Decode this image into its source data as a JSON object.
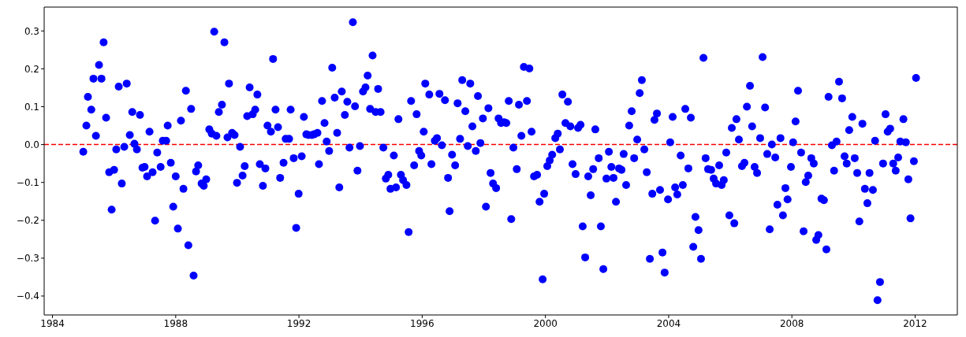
{
  "chart_data": {
    "type": "scatter",
    "marker": "circle",
    "x": [
      1985.0,
      1985.1,
      1985.15,
      1985.26,
      1985.33,
      1985.41,
      1985.51,
      1985.59,
      1985.66,
      1985.74,
      1985.84,
      1985.92,
      1986.0,
      1986.07,
      1986.15,
      1986.25,
      1986.33,
      1986.41,
      1986.51,
      1986.59,
      1986.66,
      1986.74,
      1986.84,
      1986.92,
      1986.99,
      1987.07,
      1987.15,
      1987.25,
      1987.33,
      1987.4,
      1987.51,
      1987.58,
      1987.69,
      1987.74,
      1987.84,
      1987.92,
      1988.0,
      1988.07,
      1988.17,
      1988.25,
      1988.33,
      1988.41,
      1988.5,
      1988.58,
      1988.66,
      1988.73,
      1988.84,
      1988.91,
      1988.99,
      1989.09,
      1989.17,
      1989.25,
      1989.32,
      1989.4,
      1989.5,
      1989.58,
      1989.68,
      1989.73,
      1989.83,
      1989.91,
      1989.99,
      1990.09,
      1990.17,
      1990.24,
      1990.32,
      1990.4,
      1990.5,
      1990.58,
      1990.65,
      1990.73,
      1990.83,
      1990.91,
      1990.98,
      1991.09,
      1991.16,
      1991.24,
      1991.32,
      1991.39,
      1991.5,
      1991.57,
      1991.68,
      1991.73,
      1991.83,
      1991.91,
      1991.99,
      1992.09,
      1992.16,
      1992.24,
      1992.31,
      1992.42,
      1992.49,
      1992.6,
      1992.65,
      1992.75,
      1992.83,
      1992.9,
      1992.98,
      1993.08,
      1993.16,
      1993.24,
      1993.31,
      1993.39,
      1993.49,
      1993.57,
      1993.64,
      1993.75,
      1993.82,
      1993.9,
      1993.98,
      1994.08,
      1994.16,
      1994.23,
      1994.31,
      1994.39,
      1994.49,
      1994.57,
      1994.65,
      1994.74,
      1994.82,
      1994.9,
      1994.97,
      1995.08,
      1995.15,
      1995.23,
      1995.31,
      1995.38,
      1995.49,
      1995.56,
      1995.64,
      1995.74,
      1995.82,
      1995.9,
      1995.97,
      1996.05,
      1996.1,
      1996.23,
      1996.3,
      1996.41,
      1996.48,
      1996.56,
      1996.64,
      1996.74,
      1996.84,
      1996.89,
      1996.97,
      1997.07,
      1997.15,
      1997.23,
      1997.3,
      1997.4,
      1997.48,
      1997.56,
      1997.63,
      1997.74,
      1997.81,
      1997.89,
      1997.97,
      1998.07,
      1998.15,
      1998.22,
      1998.3,
      1998.4,
      1998.48,
      1998.56,
      1998.66,
      1998.73,
      1998.81,
      1998.89,
      1998.96,
      1999.07,
      1999.14,
      1999.22,
      1999.3,
      1999.4,
      1999.48,
      1999.55,
      1999.63,
      1999.73,
      1999.81,
      1999.91,
      1999.96,
      2000.06,
      2000.14,
      2000.22,
      2000.32,
      2000.4,
      2000.47,
      2000.55,
      2000.65,
      2000.73,
      2000.81,
      2000.88,
      2000.98,
      2001.06,
      2001.14,
      2001.21,
      2001.29,
      2001.39,
      2001.47,
      2001.55,
      2001.62,
      2001.73,
      2001.8,
      2001.88,
      2001.98,
      2002.06,
      2002.14,
      2002.21,
      2002.29,
      2002.39,
      2002.47,
      2002.54,
      2002.62,
      2002.72,
      2002.8,
      2002.88,
      2002.98,
      2003.06,
      2003.13,
      2003.21,
      2003.29,
      2003.39,
      2003.47,
      2003.54,
      2003.62,
      2003.72,
      2003.8,
      2003.87,
      2003.98,
      2004.05,
      2004.13,
      2004.21,
      2004.28,
      2004.39,
      2004.46,
      2004.54,
      2004.64,
      2004.72,
      2004.8,
      2004.87,
      2004.97,
      2005.05,
      2005.13,
      2005.2,
      2005.28,
      2005.38,
      2005.46,
      2005.54,
      2005.64,
      2005.72,
      2005.79,
      2005.87,
      2005.97,
      2006.05,
      2006.13,
      2006.2,
      2006.28,
      2006.38,
      2006.46,
      2006.54,
      2006.64,
      2006.71,
      2006.79,
      2006.87,
      2006.97,
      2007.05,
      2007.13,
      2007.2,
      2007.28,
      2007.35,
      2007.46,
      2007.53,
      2007.63,
      2007.71,
      2007.79,
      2007.86,
      2007.97,
      2008.04,
      2008.12,
      2008.2,
      2008.3,
      2008.38,
      2008.45,
      2008.53,
      2008.63,
      2008.71,
      2008.79,
      2008.86,
      2008.96,
      2009.04,
      2009.12,
      2009.19,
      2009.3,
      2009.37,
      2009.45,
      2009.53,
      2009.63,
      2009.71,
      2009.78,
      2009.86,
      2009.96,
      2010.04,
      2010.12,
      2010.19,
      2010.29,
      2010.37,
      2010.45,
      2010.52,
      2010.63,
      2010.7,
      2010.78,
      2010.86,
      2010.96,
      2011.04,
      2011.11,
      2011.19,
      2011.29,
      2011.37,
      2011.45,
      2011.52,
      2011.62,
      2011.7,
      2011.78,
      2011.85,
      2011.96,
      2012.03
    ],
    "series": [
      {
        "color": "#0000ff",
        "values": [
          -0.019,
          0.05,
          0.126,
          0.092,
          0.174,
          0.023,
          0.21,
          0.174,
          0.27,
          0.071,
          -0.073,
          -0.172,
          -0.067,
          -0.013,
          0.153,
          -0.103,
          -0.006,
          0.161,
          0.025,
          0.086,
          0.002,
          -0.013,
          0.078,
          -0.061,
          -0.059,
          -0.084,
          0.034,
          -0.073,
          -0.201,
          -0.021,
          -0.059,
          0.01,
          0.01,
          0.05,
          -0.048,
          -0.164,
          -0.084,
          -0.222,
          0.063,
          -0.117,
          0.142,
          -0.266,
          0.094,
          -0.346,
          -0.071,
          -0.055,
          -0.103,
          -0.109,
          -0.092,
          0.04,
          0.029,
          0.298,
          0.023,
          0.086,
          0.105,
          0.27,
          0.019,
          0.161,
          0.031,
          0.025,
          -0.101,
          -0.006,
          -0.082,
          -0.057,
          0.075,
          0.151,
          0.08,
          0.092,
          0.132,
          -0.052,
          -0.109,
          -0.063,
          0.05,
          0.034,
          0.226,
          0.092,
          0.046,
          -0.088,
          -0.048,
          0.015,
          0.015,
          0.092,
          -0.036,
          -0.22,
          -0.13,
          -0.031,
          0.073,
          0.027,
          0.025,
          0.025,
          0.027,
          0.031,
          -0.052,
          0.115,
          0.057,
          0.008,
          -0.017,
          0.203,
          0.124,
          0.031,
          -0.113,
          0.14,
          0.078,
          0.113,
          -0.008,
          0.323,
          0.101,
          -0.069,
          -0.004,
          0.14,
          0.151,
          0.182,
          0.094,
          0.235,
          0.086,
          0.147,
          0.086,
          -0.008,
          -0.09,
          -0.08,
          -0.117,
          -0.029,
          -0.113,
          0.067,
          -0.08,
          -0.094,
          -0.107,
          -0.231,
          0.115,
          -0.055,
          0.08,
          -0.017,
          -0.029,
          0.034,
          0.161,
          0.132,
          -0.052,
          0.01,
          0.017,
          0.134,
          -0.002,
          0.117,
          -0.088,
          -0.176,
          -0.027,
          -0.055,
          0.109,
          0.015,
          0.17,
          0.088,
          -0.004,
          0.161,
          0.048,
          -0.017,
          0.128,
          0.004,
          0.069,
          -0.164,
          0.096,
          -0.075,
          -0.103,
          -0.115,
          0.069,
          0.057,
          0.059,
          0.057,
          0.115,
          -0.197,
          -0.008,
          -0.065,
          0.105,
          0.023,
          0.205,
          0.115,
          0.201,
          0.034,
          -0.084,
          -0.08,
          -0.151,
          -0.356,
          -0.13,
          -0.057,
          -0.042,
          -0.027,
          0.017,
          0.029,
          -0.013,
          0.132,
          0.057,
          0.113,
          0.048,
          -0.052,
          -0.078,
          0.044,
          0.052,
          -0.216,
          -0.298,
          -0.084,
          -0.134,
          -0.065,
          0.04,
          -0.036,
          -0.216,
          -0.329,
          -0.09,
          -0.019,
          -0.059,
          -0.088,
          -0.151,
          -0.063,
          -0.067,
          -0.025,
          -0.107,
          0.05,
          0.088,
          -0.036,
          0.013,
          0.136,
          0.17,
          -0.013,
          -0.073,
          -0.302,
          -0.13,
          0.065,
          0.082,
          -0.12,
          -0.285,
          -0.338,
          -0.145,
          0.006,
          0.073,
          -0.113,
          -0.132,
          -0.029,
          -0.107,
          0.094,
          -0.063,
          0.071,
          -0.27,
          -0.191,
          -0.226,
          -0.302,
          0.229,
          -0.036,
          -0.065,
          -0.067,
          -0.09,
          -0.103,
          -0.055,
          -0.107,
          -0.094,
          -0.021,
          -0.187,
          0.044,
          -0.208,
          0.067,
          0.013,
          -0.057,
          -0.048,
          0.1,
          0.155,
          0.048,
          -0.059,
          -0.075,
          0.017,
          0.231,
          0.098,
          -0.025,
          -0.224,
          0,
          -0.034,
          -0.159,
          0.017,
          -0.187,
          -0.115,
          -0.145,
          -0.059,
          0.006,
          0.061,
          0.142,
          -0.021,
          -0.229,
          -0.099,
          -0.082,
          -0.036,
          -0.05,
          -0.252,
          -0.239,
          -0.143,
          -0.147,
          -0.277,
          0.126,
          -0.002,
          -0.069,
          0.008,
          0.166,
          0.122,
          -0.031,
          -0.05,
          0.038,
          0.073,
          -0.036,
          -0.075,
          -0.203,
          0.055,
          -0.117,
          -0.155,
          -0.075,
          -0.12,
          0.01,
          -0.411,
          -0.363,
          -0.05,
          0.08,
          0.034,
          0.042,
          -0.05,
          -0.069,
          -0.034,
          0.008,
          0.067,
          0.006,
          -0.092,
          -0.195,
          -0.044,
          0.176
        ]
      }
    ],
    "xlim": [
      1983.73,
      2013.37
    ],
    "xticks": [
      1984,
      1988,
      1992,
      1996,
      2000,
      2004,
      2008,
      2012
    ],
    "ylim": [
      -0.45,
      0.363
    ],
    "yticks": [
      {
        "value": -0.4,
        "label": "−0.4"
      },
      {
        "value": -0.3,
        "label": "−0.3"
      },
      {
        "value": -0.2,
        "label": "−0.2"
      },
      {
        "value": -0.1,
        "label": "−0.1"
      },
      {
        "value": 0,
        "label": "0.0"
      },
      0.1,
      0.2,
      0.3
    ],
    "ref_lines": [
      {
        "axis": "y",
        "value": 0,
        "color": "#ff0000",
        "line_style": "dashed"
      }
    ]
  }
}
